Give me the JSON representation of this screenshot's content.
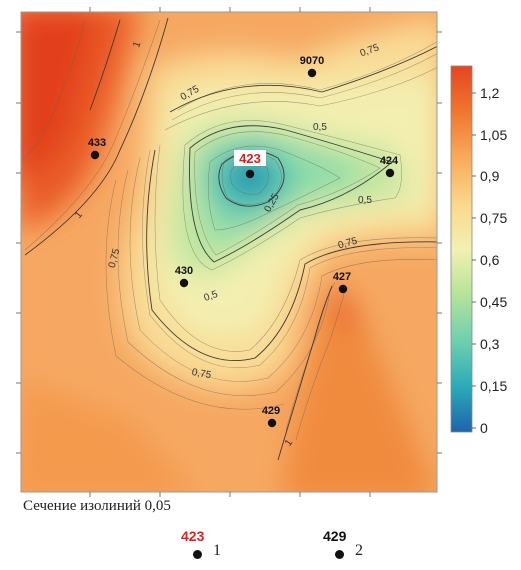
{
  "map": {
    "wells": [
      {
        "id": "9070",
        "type": "normal"
      },
      {
        "id": "433",
        "type": "normal"
      },
      {
        "id": "423",
        "type": "highlighted"
      },
      {
        "id": "424",
        "type": "normal"
      },
      {
        "id": "430",
        "type": "normal"
      },
      {
        "id": "427",
        "type": "normal"
      },
      {
        "id": "429",
        "type": "normal"
      }
    ],
    "contour_labels": [
      "1",
      "0,75",
      "0,75",
      "0,5",
      "0,25",
      "0,5",
      "0,75",
      "0,75",
      "0,5",
      "0,75",
      "1",
      "1"
    ]
  },
  "colorbar": {
    "ticks": [
      "1,2",
      "1,05",
      "0,9",
      "0,75",
      "0,6",
      "0,45",
      "0,3",
      "0,15",
      "0"
    ],
    "colors": [
      "#1e64ac",
      "#2aa8b8",
      "#6fd0ae",
      "#b8e49a",
      "#f2f0b2",
      "#fbd88c",
      "#f8aa5a",
      "#f0742e",
      "#e54520"
    ]
  },
  "caption": "Сечение изолиний 0,05",
  "legend": [
    {
      "code": "423",
      "code_color": "#e0201c",
      "number": "1"
    },
    {
      "code": "429",
      "code_color": "#111111",
      "number": "2"
    }
  ]
}
